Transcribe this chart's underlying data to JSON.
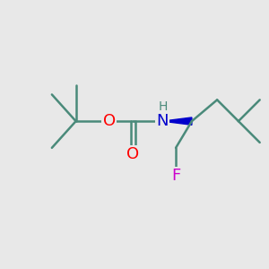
{
  "background_color": "#e8e8e8",
  "bond_color": "#4a8a7a",
  "O_color": "#ff0000",
  "N_color": "#0000cc",
  "F_color": "#cc00cc",
  "H_color": "#4a8a7a",
  "line_width": 1.8,
  "font_size_atoms": 13,
  "font_size_H": 10,
  "figsize": [
    3.0,
    3.0
  ],
  "dpi": 100,
  "xlim": [
    0,
    10
  ],
  "ylim": [
    0,
    10
  ]
}
